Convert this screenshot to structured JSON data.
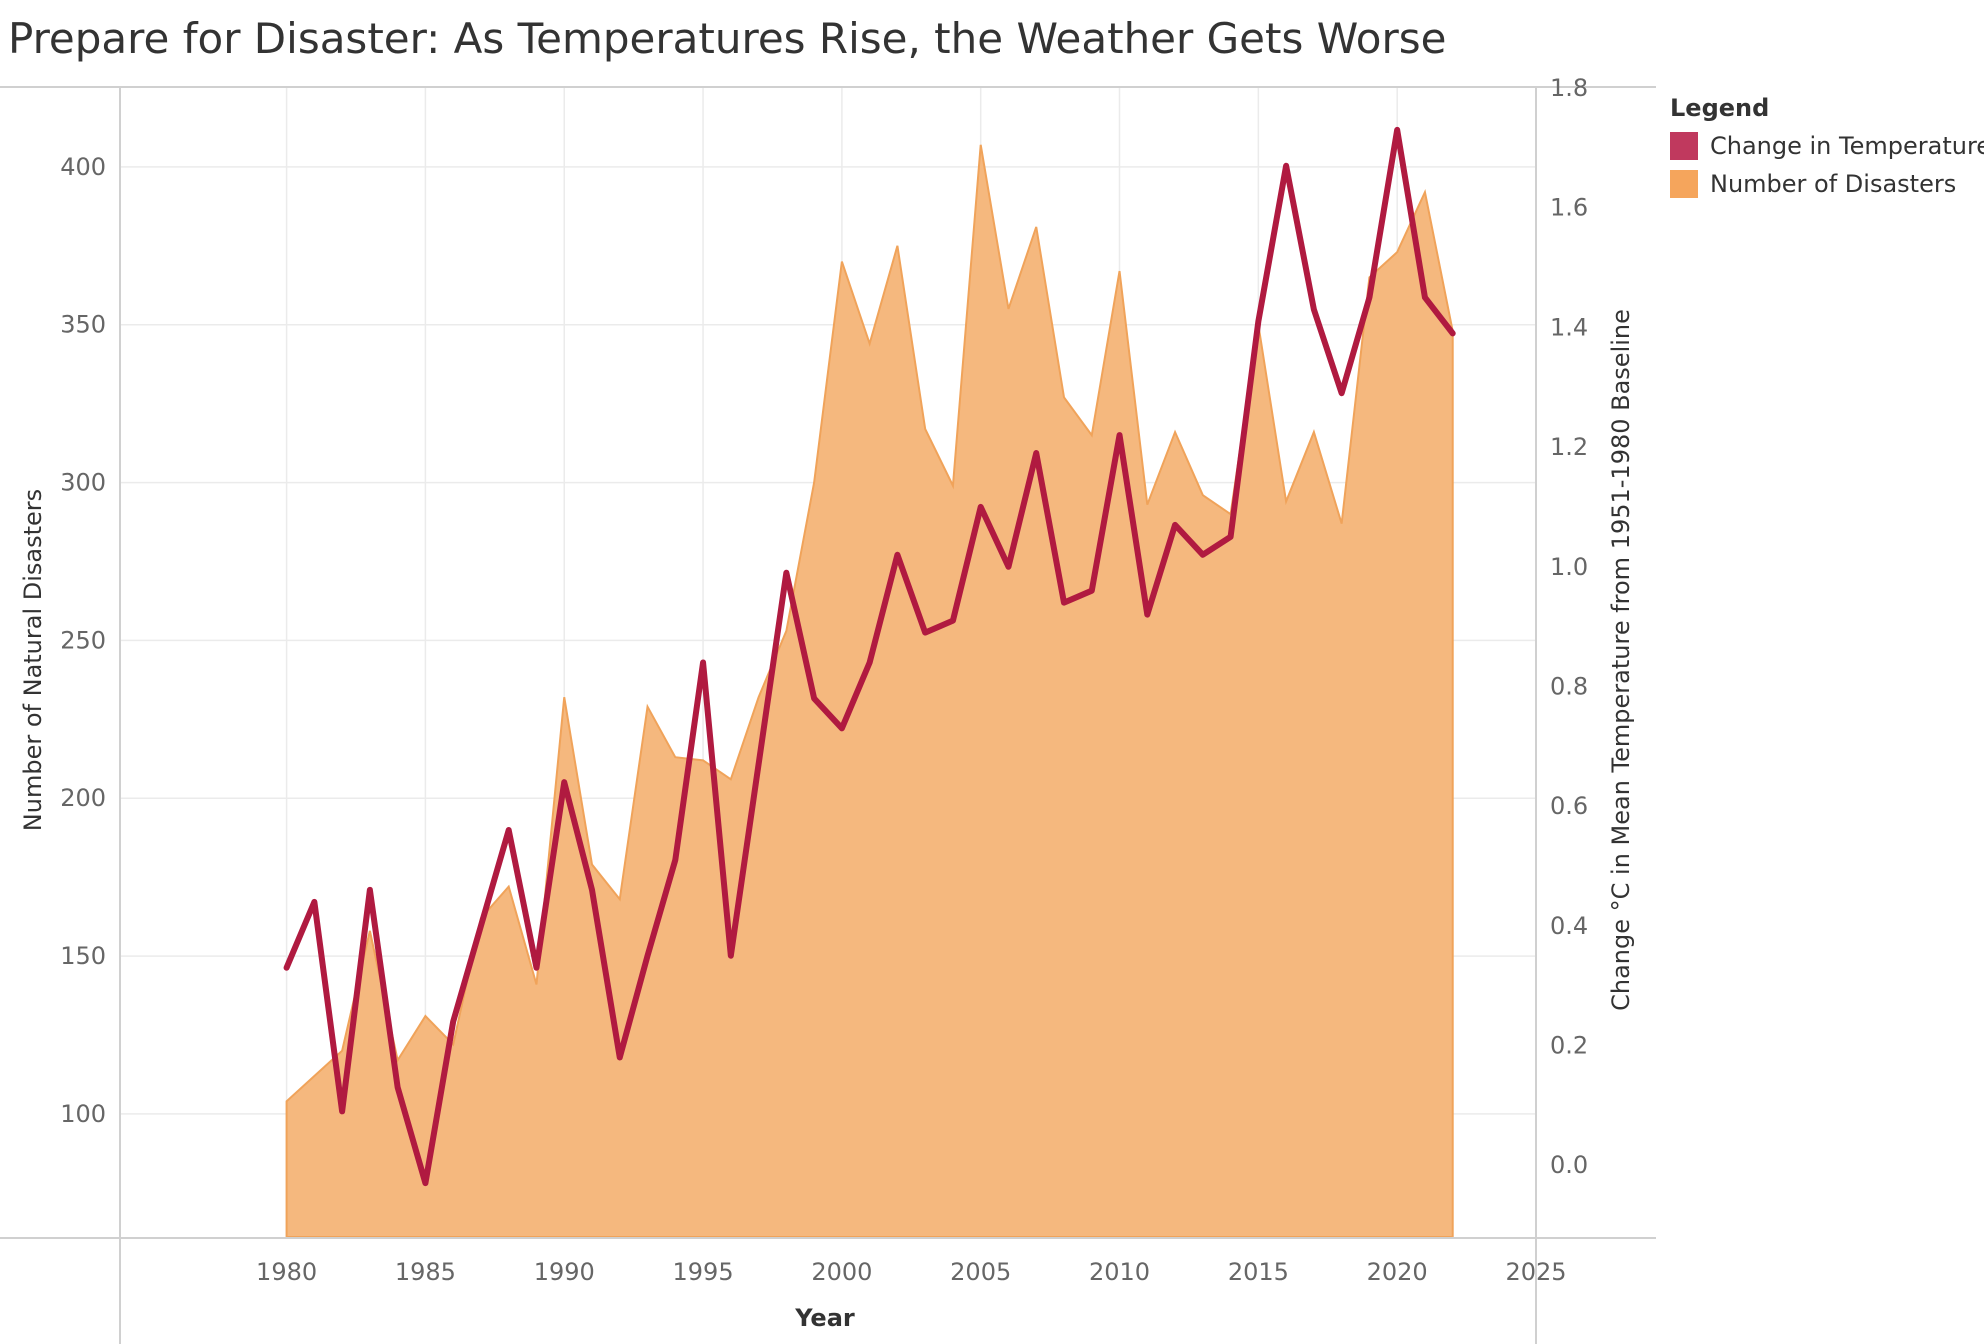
{
  "title": "Prepare for Disaster: As Temperatures Rise, the Weather Gets Worse",
  "legend": {
    "title": "Legend",
    "items": [
      {
        "label": "Change in Temperature",
        "color": "#c0395e"
      },
      {
        "label": "Number of Disasters",
        "color": "#f5a55c"
      }
    ]
  },
  "chart_data": {
    "type": "area",
    "xlabel": "Year",
    "ylabel_left": "Number of Natural Disasters",
    "ylabel_right": "Change °C in Mean Temperature from 1951-1980 Baseline",
    "xlim": [
      1974,
      2025
    ],
    "ylim_left": [
      61,
      425
    ],
    "ylim_right": [
      -0.12,
      1.8
    ],
    "x_ticks": [
      1980,
      1985,
      1990,
      1995,
      2000,
      2005,
      2010,
      2015,
      2020,
      2025
    ],
    "y_left_ticks": [
      100,
      150,
      200,
      250,
      300,
      350,
      400
    ],
    "y_right_ticks": [
      0.0,
      0.2,
      0.4,
      0.6,
      0.8,
      1.0,
      1.2,
      1.4,
      1.6,
      1.8
    ],
    "y_right_tick_labels": [
      "0.0",
      "0.2",
      "0.4",
      "0.6",
      "0.8",
      "1.0",
      "1.2",
      "1.4",
      "1.6",
      "1.8"
    ],
    "grid": true,
    "legend_position": "right",
    "x": [
      1980,
      1981,
      1982,
      1983,
      1984,
      1985,
      1986,
      1987,
      1988,
      1989,
      1990,
      1991,
      1992,
      1993,
      1994,
      1995,
      1996,
      1997,
      1998,
      1999,
      2000,
      2001,
      2002,
      2003,
      2004,
      2005,
      2006,
      2007,
      2008,
      2009,
      2010,
      2011,
      2012,
      2013,
      2014,
      2015,
      2016,
      2017,
      2018,
      2019,
      2020,
      2021,
      2022
    ],
    "series": [
      {
        "name": "Number of Disasters",
        "type": "area",
        "axis": "left",
        "color": "#f5a55c",
        "values": [
          104,
          112,
          120,
          158,
          117,
          131,
          122,
          162,
          172,
          141,
          232,
          179,
          168,
          229,
          213,
          212,
          206,
          232,
          253,
          300,
          370,
          344,
          375,
          317,
          299,
          407,
          355,
          381,
          327,
          315,
          367,
          293,
          316,
          296,
          290,
          350,
          294,
          316,
          287,
          365,
          373,
          392,
          348
        ]
      },
      {
        "name": "Change in Temperature",
        "type": "line",
        "axis": "right",
        "color": "#b01a40",
        "values": [
          0.33,
          0.44,
          0.09,
          0.46,
          0.13,
          -0.03,
          0.24,
          0.4,
          0.56,
          0.33,
          0.64,
          0.46,
          0.18,
          0.35,
          0.51,
          0.84,
          0.35,
          0.67,
          0.99,
          0.78,
          0.73,
          0.84,
          1.02,
          0.89,
          0.91,
          1.1,
          1.0,
          1.19,
          0.94,
          0.96,
          1.22,
          0.92,
          1.07,
          1.02,
          1.05,
          1.41,
          1.67,
          1.43,
          1.29,
          1.45,
          1.73,
          1.45,
          1.39
        ]
      }
    ]
  }
}
